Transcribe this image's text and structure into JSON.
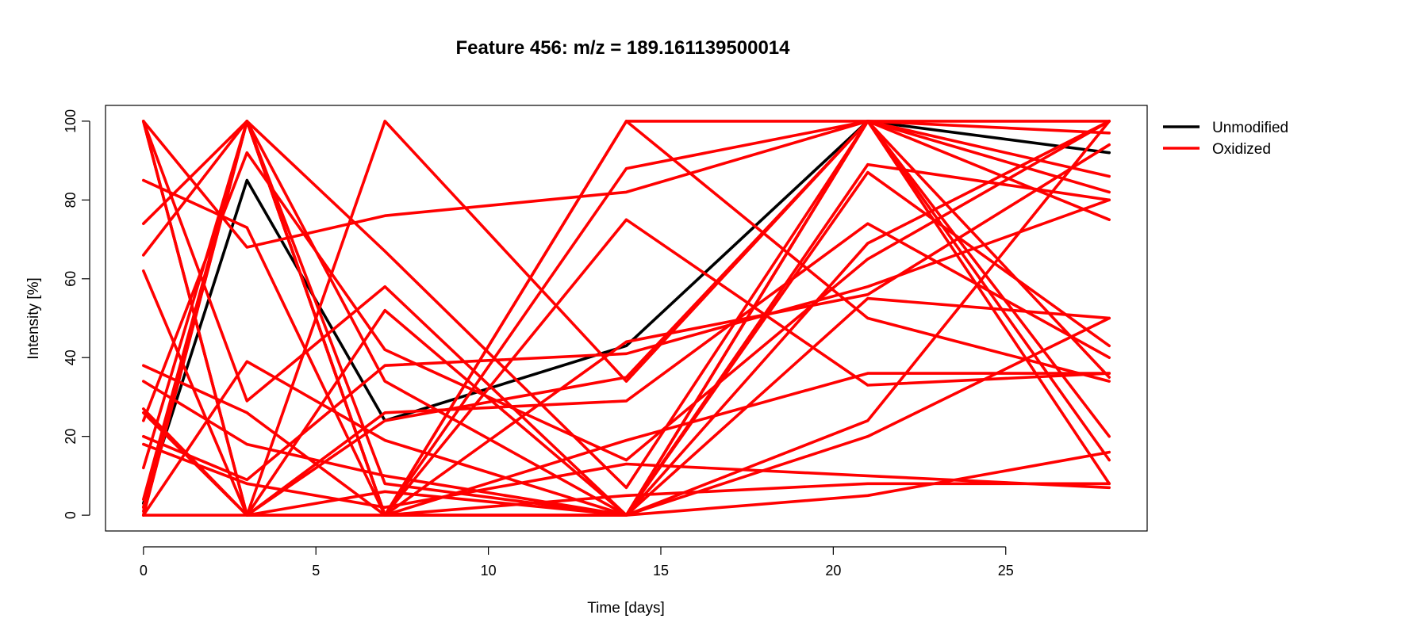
{
  "chart_data": {
    "type": "line",
    "title": "Feature 456: m/z = 189.161139500014",
    "xlabel": "Time [days]",
    "ylabel": "Intensity [%]",
    "x": [
      0,
      3,
      7,
      14,
      21,
      28
    ],
    "xlim": [
      -1.1,
      29.1
    ],
    "ylim": [
      -4,
      104
    ],
    "xticks": [
      0,
      5,
      10,
      15,
      20,
      25
    ],
    "yticks": [
      0,
      20,
      40,
      60,
      80,
      100
    ],
    "legend_position": "top-right-outside",
    "legend": [
      {
        "label": "Unmodified",
        "color": "#000000"
      },
      {
        "label": "Oxidized",
        "color": "#ff0000"
      }
    ],
    "series": [
      {
        "group": "Unmodified",
        "color": "#000000",
        "values": [
          3,
          85,
          24,
          43,
          100,
          92
        ]
      },
      {
        "group": "Oxidized",
        "color": "#ff0000",
        "values": [
          100,
          0,
          24,
          35,
          100,
          35
        ]
      },
      {
        "group": "Oxidized",
        "color": "#ff0000",
        "values": [
          0,
          100,
          67,
          7,
          100,
          20
        ]
      },
      {
        "group": "Oxidized",
        "color": "#ff0000",
        "values": [
          66,
          100,
          0,
          100,
          50,
          34
        ]
      },
      {
        "group": "Oxidized",
        "color": "#ff0000",
        "values": [
          100,
          29,
          58,
          0,
          100,
          75
        ]
      },
      {
        "group": "Oxidized",
        "color": "#ff0000",
        "values": [
          74,
          100,
          0,
          88,
          100,
          14
        ]
      },
      {
        "group": "Oxidized",
        "color": "#ff0000",
        "values": [
          85,
          73,
          0,
          0,
          100,
          97
        ]
      },
      {
        "group": "Oxidized",
        "color": "#ff0000",
        "values": [
          62,
          0,
          100,
          34,
          100,
          86
        ]
      },
      {
        "group": "Oxidized",
        "color": "#ff0000",
        "values": [
          100,
          0,
          52,
          0,
          89,
          80
        ]
      },
      {
        "group": "Oxidized",
        "color": "#ff0000",
        "values": [
          2,
          100,
          0,
          75,
          33,
          36
        ]
      },
      {
        "group": "Oxidized",
        "color": "#ff0000",
        "values": [
          100,
          68,
          76,
          82,
          100,
          82
        ]
      },
      {
        "group": "Oxidized",
        "color": "#ff0000",
        "values": [
          38,
          26,
          0,
          0,
          87,
          43
        ]
      },
      {
        "group": "Oxidized",
        "color": "#ff0000",
        "values": [
          27,
          0,
          26,
          29,
          74,
          40
        ]
      },
      {
        "group": "Oxidized",
        "color": "#ff0000",
        "values": [
          20,
          9,
          38,
          41,
          58,
          80
        ]
      },
      {
        "group": "Oxidized",
        "color": "#ff0000",
        "values": [
          1,
          100,
          34,
          0,
          69,
          100
        ]
      },
      {
        "group": "Oxidized",
        "color": "#ff0000",
        "values": [
          12,
          100,
          8,
          0,
          55,
          50
        ]
      },
      {
        "group": "Oxidized",
        "color": "#ff0000",
        "values": [
          24,
          92,
          42,
          14,
          65,
          100
        ]
      },
      {
        "group": "Oxidized",
        "color": "#ff0000",
        "values": [
          34,
          18,
          10,
          0,
          100,
          8
        ]
      },
      {
        "group": "Oxidized",
        "color": "#ff0000",
        "values": [
          18,
          8,
          2,
          13,
          10,
          7
        ]
      },
      {
        "group": "Oxidized",
        "color": "#ff0000",
        "values": [
          0,
          39,
          19,
          0,
          5,
          16
        ]
      },
      {
        "group": "Oxidized",
        "color": "#ff0000",
        "values": [
          4,
          100,
          0,
          0,
          24,
          100
        ]
      },
      {
        "group": "Oxidized",
        "color": "#ff0000",
        "values": [
          100,
          0,
          0,
          44,
          56,
          94
        ]
      },
      {
        "group": "Oxidized",
        "color": "#ff0000",
        "values": [
          26,
          0,
          6,
          0,
          20,
          50
        ]
      },
      {
        "group": "Oxidized",
        "color": "#ff0000",
        "values": [
          0,
          100,
          0,
          19,
          36,
          36
        ]
      },
      {
        "group": "Oxidized",
        "color": "#ff0000",
        "values": [
          2,
          100,
          0,
          100,
          100,
          100
        ]
      },
      {
        "group": "Oxidized",
        "color": "#ff0000",
        "values": [
          0,
          0,
          0,
          5,
          8,
          8
        ]
      }
    ]
  }
}
